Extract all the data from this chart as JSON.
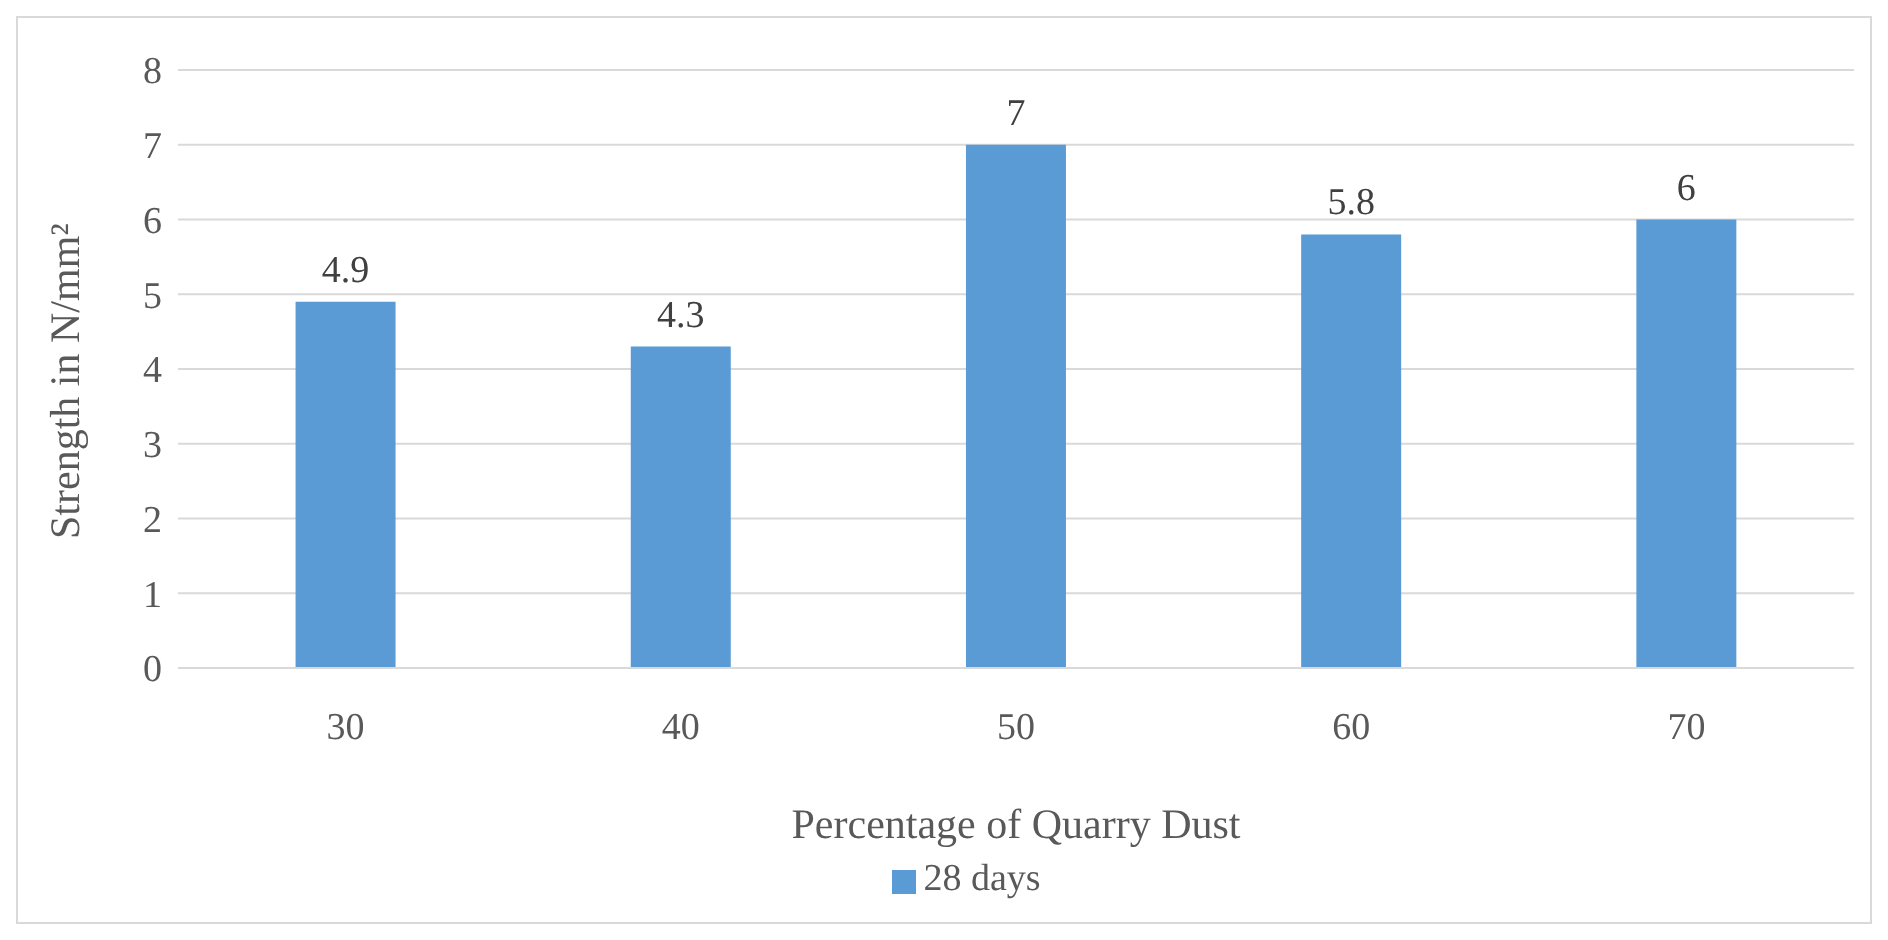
{
  "chart_data": {
    "type": "bar",
    "xlabel": "Percentage of Quarry Dust",
    "ylabel": "Strength in N/mm²",
    "categories": [
      "30",
      "40",
      "50",
      "60",
      "70"
    ],
    "series": [
      {
        "name": "28 days",
        "color": "#5b9bd5",
        "values": [
          4.9,
          4.3,
          7,
          5.8,
          6
        ]
      }
    ],
    "ylim": [
      0,
      8
    ],
    "yticks": [
      0,
      1,
      2,
      3,
      4,
      5,
      6,
      7,
      8
    ],
    "grid": "y",
    "data_labels": true,
    "legend": "bottom"
  }
}
